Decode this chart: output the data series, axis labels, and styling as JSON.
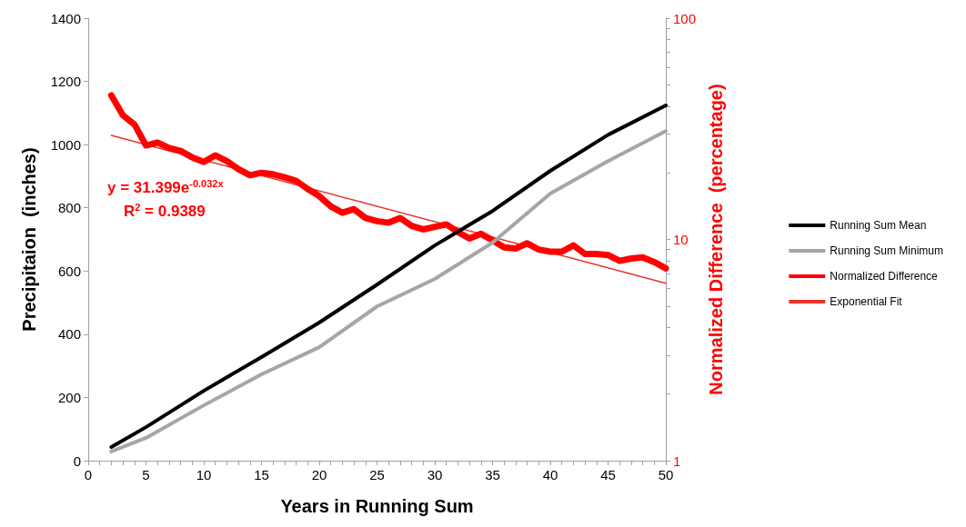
{
  "chart_data": {
    "type": "line",
    "xlabel": "Years in Running Sum",
    "ylabel": "Precipitaion  (inches)",
    "y2label": "Normalized Difference  (percentage)",
    "xlim": [
      0,
      50
    ],
    "xticks": [
      0,
      {
        "value": 1,
        "label": null
      },
      {
        "value": 2,
        "label": null
      },
      {
        "value": 3,
        "label": null
      },
      {
        "value": 4,
        "label": null
      },
      5,
      {
        "value": 6,
        "label": null
      },
      {
        "value": 7,
        "label": null
      },
      {
        "value": 8,
        "label": null
      },
      {
        "value": 9,
        "label": null
      },
      10,
      {
        "value": 11,
        "label": null
      },
      {
        "value": 12,
        "label": null
      },
      {
        "value": 13,
        "label": null
      },
      {
        "value": 14,
        "label": null
      },
      15,
      {
        "value": 16,
        "label": null
      },
      {
        "value": 17,
        "label": null
      },
      {
        "value": 18,
        "label": null
      },
      {
        "value": 19,
        "label": null
      },
      20,
      {
        "value": 21,
        "label": null
      },
      {
        "value": 22,
        "label": null
      },
      {
        "value": 23,
        "label": null
      },
      {
        "value": 24,
        "label": null
      },
      25,
      {
        "value": 26,
        "label": null
      },
      {
        "value": 27,
        "label": null
      },
      {
        "value": 28,
        "label": null
      },
      {
        "value": 29,
        "label": null
      },
      30,
      {
        "value": 31,
        "label": null
      },
      {
        "value": 32,
        "label": null
      },
      {
        "value": 33,
        "label": null
      },
      {
        "value": 34,
        "label": null
      },
      35,
      {
        "value": 36,
        "label": null
      },
      {
        "value": 37,
        "label": null
      },
      {
        "value": 38,
        "label": null
      },
      {
        "value": 39,
        "label": null
      },
      40,
      {
        "value": 41,
        "label": null
      },
      {
        "value": 42,
        "label": null
      },
      {
        "value": 43,
        "label": null
      },
      {
        "value": 44,
        "label": null
      },
      45,
      {
        "value": 46,
        "label": null
      },
      {
        "value": 47,
        "label": null
      },
      {
        "value": 48,
        "label": null
      },
      {
        "value": 49,
        "label": null
      },
      50
    ],
    "ylim": [
      0,
      1400
    ],
    "yticks": [
      0,
      200,
      400,
      600,
      800,
      1000,
      1200,
      1400
    ],
    "log": "y2",
    "y2lim": [
      1,
      100
    ],
    "y2ticks": [
      1,
      {
        "value": 2,
        "label": null
      },
      {
        "value": 3,
        "label": null
      },
      {
        "value": 4,
        "label": null
      },
      {
        "value": 5,
        "label": null
      },
      {
        "value": 6,
        "label": null
      },
      {
        "value": 7,
        "label": null
      },
      {
        "value": 8,
        "label": null
      },
      {
        "value": 9,
        "label": null
      },
      10,
      {
        "value": 20,
        "label": null
      },
      {
        "value": 30,
        "label": null
      },
      {
        "value": 40,
        "label": null
      },
      {
        "value": 50,
        "label": null
      },
      {
        "value": 60,
        "label": null
      },
      {
        "value": 70,
        "label": null
      },
      {
        "value": 80,
        "label": null
      },
      {
        "value": 90,
        "label": null
      },
      100
    ],
    "grid": false,
    "legend": "right",
    "marker": "none",
    "annotations": [
      "y = 31.399e$^{-0.032x}$",
      "R$^{2}$ = 0.9389"
    ],
    "series": [
      {
        "name": "Running Sum Mean",
        "color": "#000000",
        "x": [
          2,
          5,
          10,
          15,
          20,
          25,
          30,
          35,
          40,
          45,
          50
        ],
        "values": [
          43,
          106,
          221,
          328,
          437,
          557,
          681,
          790,
          917,
          1031,
          1124
        ]
      },
      {
        "name": "Running Sum Minimum",
        "color": "#a6a6a6",
        "x": [
          2,
          5,
          10,
          15,
          20,
          25,
          30,
          35,
          40,
          45,
          50
        ],
        "values": [
          29,
          72,
          175,
          273,
          359,
          488,
          575,
          690,
          845,
          948,
          1043
        ]
      },
      {
        "name": "Normalized Difference",
        "color": "#ff0000",
        "axis": "y2",
        "x": [
          2,
          3,
          4,
          5,
          6,
          7,
          8,
          9,
          10,
          11,
          12,
          13,
          14,
          15,
          16,
          17,
          18,
          19,
          20,
          21,
          22,
          23,
          24,
          25,
          26,
          27,
          28,
          29,
          30,
          31,
          32,
          33,
          34,
          35,
          36,
          37,
          38,
          39,
          40,
          41,
          42,
          43,
          44,
          45,
          46,
          47,
          48,
          49,
          50
        ],
        "values": [
          44.8,
          36.4,
          33.1,
          26.6,
          27.4,
          25.9,
          25.1,
          23.5,
          22.4,
          24.0,
          22.6,
          20.8,
          19.5,
          20.0,
          19.7,
          19.1,
          18.4,
          16.9,
          15.7,
          14.1,
          13.2,
          13.7,
          12.5,
          12.1,
          11.9,
          12.5,
          11.5,
          11.1,
          11.4,
          11.7,
          10.8,
          10.1,
          10.6,
          9.9,
          9.2,
          9.1,
          9.6,
          9.0,
          8.8,
          8.8,
          9.4,
          8.6,
          8.6,
          8.5,
          8.0,
          8.2,
          8.3,
          7.9,
          7.4
        ]
      },
      {
        "name": "Exponential Fit",
        "color": "#e8332b",
        "axis": "y2",
        "x": [
          2,
          50
        ],
        "values": [
          29.5,
          6.34
        ]
      }
    ]
  }
}
